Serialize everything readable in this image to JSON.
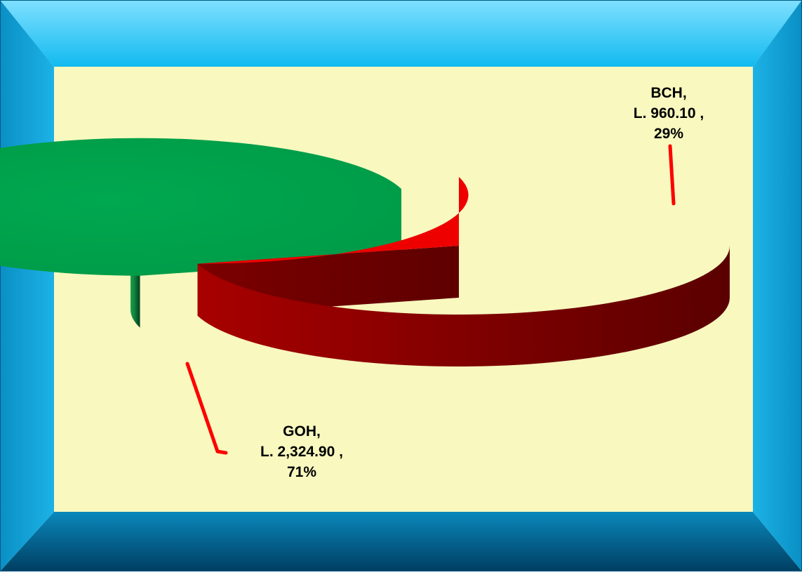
{
  "chart_data": {
    "type": "pie",
    "style": "3d-exploded",
    "categories": [
      "GOH",
      "BCH"
    ],
    "series": [
      {
        "values": [
          2324.9,
          960.1
        ]
      }
    ],
    "data_labels": [
      {
        "category": "GOH,",
        "value": "L. 2,324.90 ,",
        "percent": "71%"
      },
      {
        "category": "BCH,",
        "value": "L. 960.10 ,",
        "percent": "29%"
      }
    ],
    "percents": [
      71,
      29
    ],
    "colors": {
      "GOH": "#00a24a",
      "BCH": "#ee0000",
      "leader_lines": "#ff0000",
      "plot_background": "#f8f8bf",
      "frame": "#00b6ee"
    }
  }
}
